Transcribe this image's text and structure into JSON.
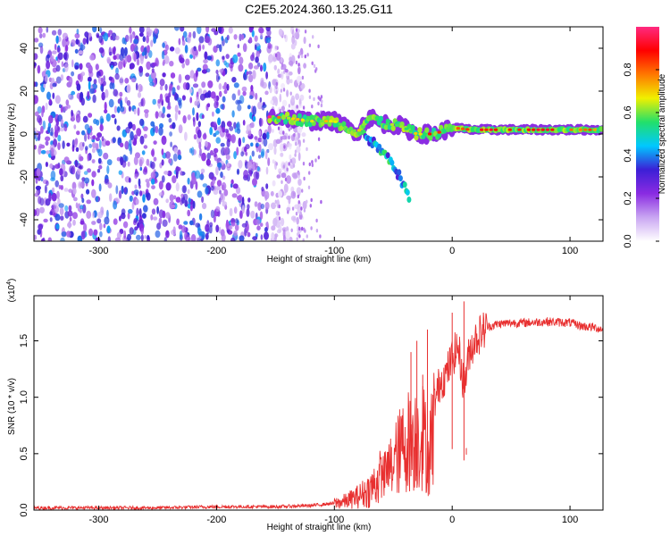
{
  "title": "C2E5.2024.360.13.25.G11",
  "chart_data": [
    {
      "type": "heatmap",
      "xlabel": "Height of straight line (km)",
      "ylabel": "Frequency (Hz)",
      "xlim": [
        -355,
        128
      ],
      "ylim": [
        -50,
        50
      ],
      "x_ticks": [
        "-300",
        "-200",
        "-100",
        "0",
        "100"
      ],
      "y_ticks": [
        "-40",
        "-20",
        "0",
        "20",
        "40"
      ],
      "colorbar": {
        "label": "Normalized spectral amplitude",
        "range": [
          0,
          1
        ],
        "ticks": [
          "0.0",
          "0.2",
          "0.4",
          "0.6",
          "0.8"
        ],
        "colors": [
          "#ffffff",
          "#c9a6f2",
          "#8a2be2",
          "#3c1fd6",
          "#00c8ff",
          "#22e06a",
          "#f0f000",
          "#ff7800",
          "#ff0000",
          "#ff2a80"
        ]
      },
      "noise_region": {
        "x_from": -355,
        "x_to": -155,
        "amplitude": 0.3
      },
      "signal_track": [
        {
          "x": -155,
          "freq": 8,
          "amp": 0.85
        },
        {
          "x": -140,
          "freq": 7.5,
          "amp": 0.6
        },
        {
          "x": -120,
          "freq": 6,
          "amp": 0.55
        },
        {
          "x": -100,
          "freq": 6,
          "amp": 0.6
        },
        {
          "x": -90,
          "freq": 3,
          "amp": 0.5
        },
        {
          "x": -80,
          "freq": 1,
          "amp": 0.6
        },
        {
          "x": -70,
          "freq": 8,
          "amp": 0.5
        },
        {
          "x": -60,
          "freq": 5,
          "amp": 0.5
        },
        {
          "x": -45,
          "freq": 4,
          "amp": 0.5
        },
        {
          "x": -30,
          "freq": 0,
          "amp": 0.6
        },
        {
          "x": -15,
          "freq": 0,
          "amp": 0.8
        },
        {
          "x": 0,
          "freq": 3,
          "amp": 0.75
        },
        {
          "x": 15,
          "freq": 2,
          "amp": 0.8
        },
        {
          "x": 40,
          "freq": 2,
          "amp": 0.8
        },
        {
          "x": 80,
          "freq": 2,
          "amp": 0.8
        },
        {
          "x": 128,
          "freq": 2,
          "amp": 0.7
        }
      ],
      "secondary_branch": [
        {
          "x": -75,
          "freq": 0
        },
        {
          "x": -60,
          "freq": -8
        },
        {
          "x": -50,
          "freq": -14
        },
        {
          "x": -43,
          "freq": -22
        },
        {
          "x": -36,
          "freq": -30
        }
      ]
    },
    {
      "type": "line",
      "xlabel": "Height of straight line (km)",
      "ylabel": "SNR (10 * v/v)",
      "y_multiplier": "(x10",
      "y_multiplier_exp": "4",
      "y_multiplier_close": ")",
      "xlim": [
        -355,
        128
      ],
      "ylim": [
        0,
        1.9
      ],
      "x_ticks": [
        "-300",
        "-200",
        "-100",
        "0",
        "100"
      ],
      "y_ticks": [
        "0.0",
        "0.5",
        "1.0",
        "1.5"
      ],
      "series": [
        {
          "color": "#e83030",
          "x": [
            -355,
            -300,
            -250,
            -200,
            -150,
            -120,
            -100,
            -90,
            -80,
            -70,
            -60,
            -50,
            -45,
            -40,
            -35,
            -30,
            -25,
            -20,
            -15,
            -10,
            -5,
            0,
            5,
            10,
            15,
            20,
            25,
            30,
            35,
            40,
            50,
            60,
            80,
            100,
            110,
            120,
            128
          ],
          "y": [
            0.02,
            0.02,
            0.02,
            0.03,
            0.03,
            0.04,
            0.06,
            0.08,
            0.12,
            0.18,
            0.3,
            0.5,
            0.6,
            0.7,
            0.75,
            0.75,
            0.8,
            0.55,
            0.95,
            1.15,
            1.2,
            1.35,
            1.45,
            1.1,
            1.42,
            1.52,
            1.58,
            1.62,
            1.64,
            1.65,
            1.66,
            1.66,
            1.67,
            1.66,
            1.63,
            1.62,
            1.6
          ]
        }
      ],
      "spikes": [
        {
          "x": -35,
          "y": 1.4
        },
        {
          "x": -30,
          "y": 1.5
        },
        {
          "x": -25,
          "y": 1.2
        },
        {
          "x": -21,
          "y": 1.6
        },
        {
          "x": 0,
          "y": 1.75
        },
        {
          "x": 10,
          "y": 1.85
        },
        {
          "x": 12,
          "y": 0.55
        }
      ]
    }
  ]
}
